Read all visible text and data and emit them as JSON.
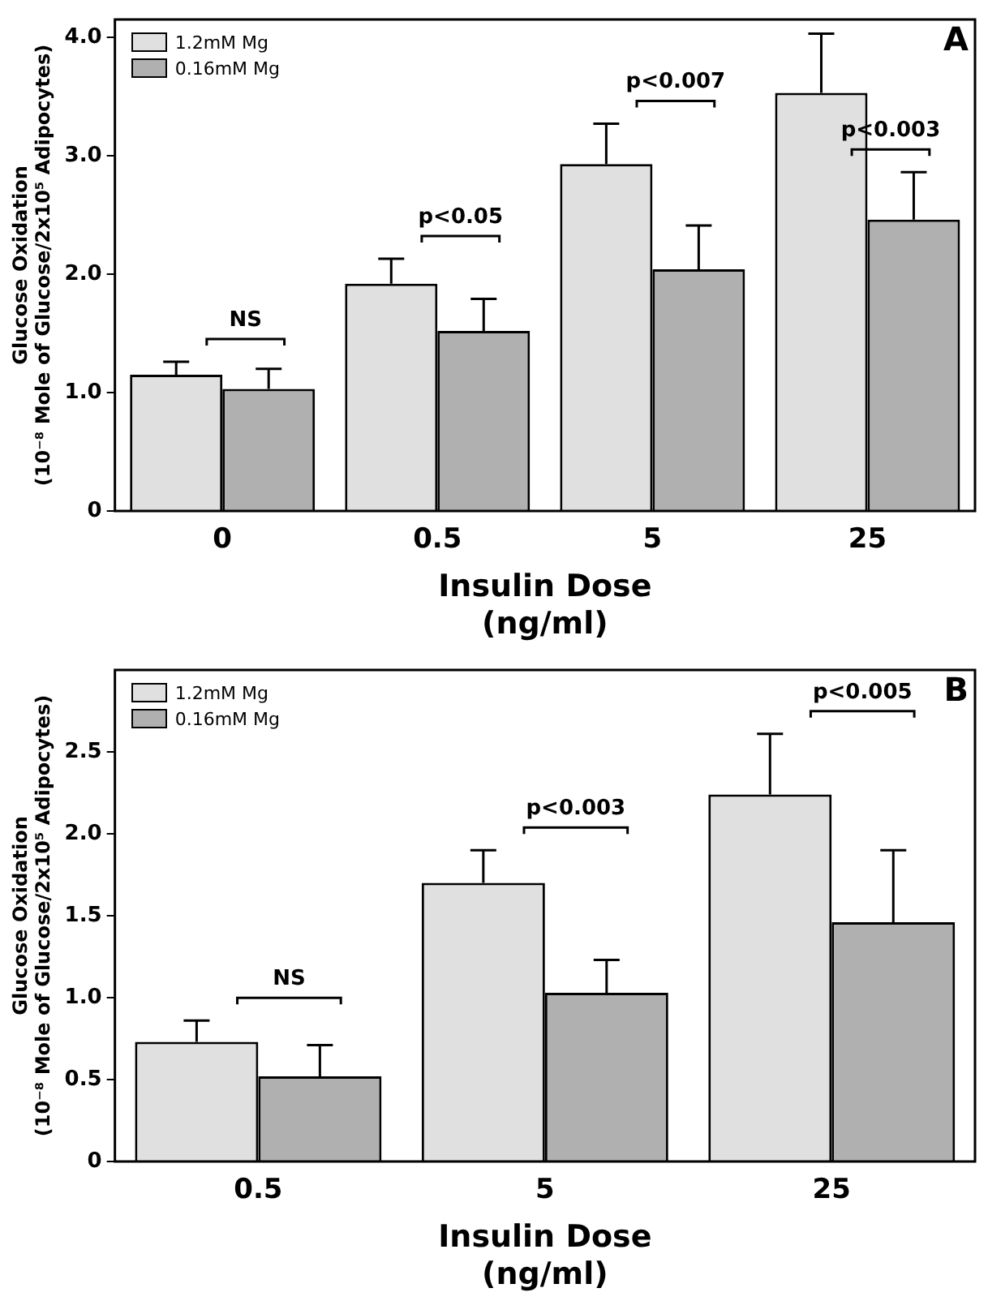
{
  "chart_data": [
    {
      "type": "bar",
      "xlabel": "Insulin Dose\n(ng/ml)",
      "ylabel": "Glucose Oxidation\n(10⁻⁸ Mole of Glucose/2x10⁵ Adipocytes)",
      "categories": [
        "0",
        "0.5",
        "5",
        "25"
      ],
      "series": [
        {
          "name": "1.2mM Mg",
          "color": "#e0e0e0",
          "values": [
            1.15,
            1.92,
            2.93,
            3.53
          ],
          "errors": [
            [
              1.15,
              1.26
            ],
            [
              1.92,
              2.13
            ],
            [
              2.93,
              3.27
            ],
            [
              3.53,
              4.03
            ]
          ]
        },
        {
          "name": "0.16mM Mg",
          "color": "#b0b0b0",
          "values": [
            1.03,
            1.52,
            2.04,
            2.46
          ],
          "errors": [
            [
              1.03,
              1.2
            ],
            [
              1.52,
              1.79
            ],
            [
              2.04,
              2.41
            ],
            [
              2.46,
              2.86
            ]
          ]
        }
      ],
      "ylim": [
        0,
        4.15
      ],
      "yticks": [
        0,
        {
          "value": 1,
          "label": "1.0"
        },
        {
          "value": 2,
          "label": "2.0"
        },
        {
          "value": 3,
          "label": "3.0"
        },
        {
          "value": 4,
          "label": "4.0"
        }
      ],
      "grid": false,
      "legend": "top left",
      "annotations": [
        "NS",
        "p<0.05",
        "p<0.007",
        "p<0.003",
        "A"
      ]
    },
    {
      "type": "bar",
      "xlabel": "Insulin Dose\n(ng/ml)",
      "ylabel": "Glucose Oxidation\n(10⁻⁸ Mole of Glucose/2x10⁵ Adipocytes)",
      "categories": [
        "0.5",
        "5",
        "25"
      ],
      "series": [
        {
          "name": "1.2mM Mg",
          "color": "#e0e0e0",
          "values": [
            0.73,
            1.7,
            2.24
          ],
          "errors": [
            [
              0.73,
              0.86
            ],
            [
              1.7,
              1.9
            ],
            [
              2.24,
              2.61
            ]
          ]
        },
        {
          "name": "0.16mM Mg",
          "color": "#b0b0b0",
          "values": [
            0.52,
            1.03,
            1.46
          ],
          "errors": [
            [
              0.52,
              0.71
            ],
            [
              1.03,
              1.23
            ],
            [
              1.46,
              1.9
            ]
          ]
        }
      ],
      "ylim": [
        0,
        3
      ],
      "yticks": [
        0,
        0.5,
        {
          "value": 1,
          "label": "1.0"
        },
        1.5,
        {
          "value": 2,
          "label": "2.0"
        },
        2.5
      ],
      "grid": false,
      "legend": "top left",
      "annotations": [
        "NS",
        "p<0.003",
        "p<0.005",
        "B"
      ]
    }
  ]
}
